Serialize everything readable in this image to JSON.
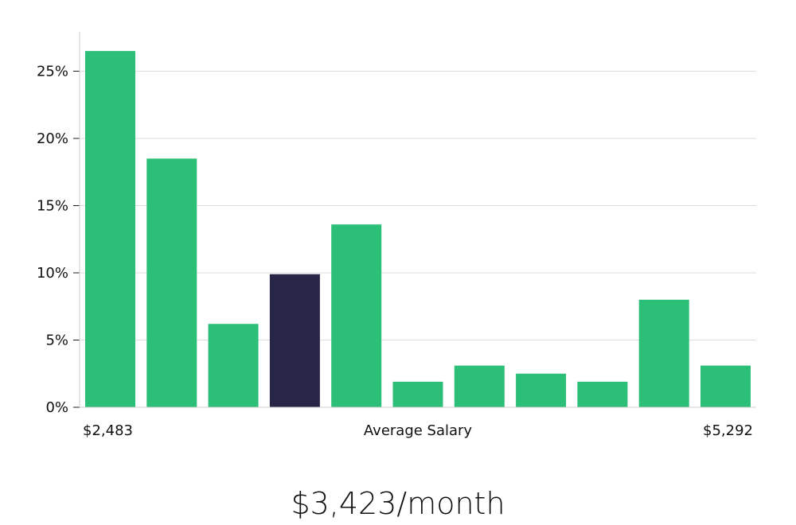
{
  "chart_data": {
    "type": "bar",
    "title": "",
    "xlabel": "Average Salary",
    "ylabel": "",
    "x_start_label": "$2,483",
    "x_end_label": "$5,292",
    "y_unit": "%",
    "yticks": [
      "0%",
      "5%",
      "10%",
      "15%",
      "20%",
      "25%"
    ],
    "ylim": [
      0,
      28
    ],
    "grid": true,
    "values": [
      26.5,
      18.5,
      6.2,
      9.9,
      13.6,
      1.9,
      3.1,
      2.5,
      1.9,
      8.0,
      3.1
    ],
    "highlight_index": 3,
    "colors": {
      "bar": "#2bbf77",
      "highlight": "#282646",
      "grid": "#dddddd",
      "axis": "#cccccc"
    }
  },
  "summary": {
    "average_salary": "$3,423/month"
  }
}
